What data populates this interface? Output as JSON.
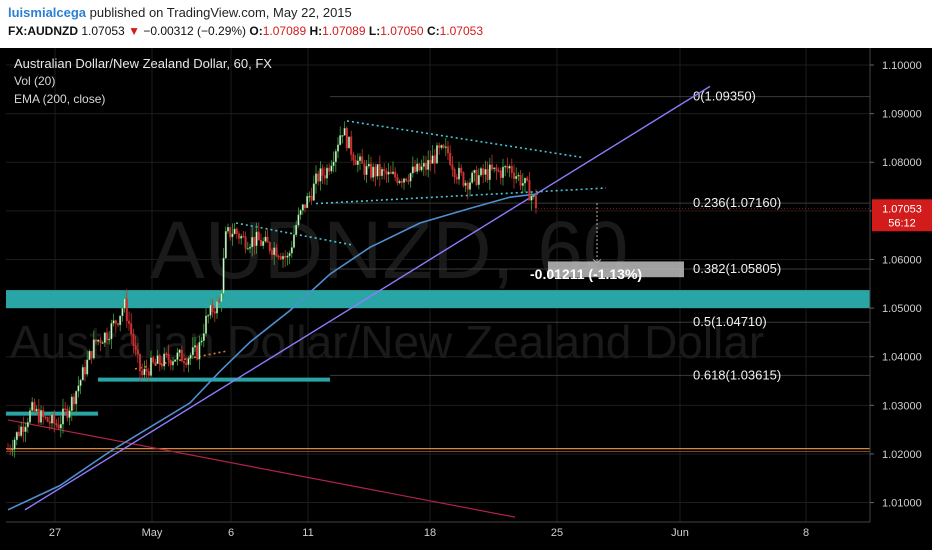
{
  "header": {
    "user": "luismialcega",
    "published": "published on TradingView.com, May 22, 2015",
    "symbol": "FX:AUDNZD",
    "last": "1.07053",
    "change": "−0.00312 (−0.29%)",
    "o_label": "O:",
    "o": "1.07089",
    "h_label": "H:",
    "h": "1.07089",
    "l_label": "L:",
    "l": "1.07050",
    "c_label": "C:",
    "c": "1.07053"
  },
  "legend": {
    "title": "Australian Dollar/New Zealand Dollar, 60, FX",
    "vol": "Vol (20)",
    "ema": "EMA (200, close)"
  },
  "watermark": {
    "symbol": "AUDNZD, 60",
    "name": "Australian Dollar/New Zealand Dollar"
  },
  "chart_data": {
    "type": "candlestick",
    "y_range": [
      1.006,
      1.1035
    ],
    "y_ticks": [
      "1.10000",
      "1.09000",
      "1.08000",
      "1.07000",
      "1.06000",
      "1.05000",
      "1.04000",
      "1.03000",
      "1.02000",
      "1.01000"
    ],
    "x_ticks": [
      "27",
      "May",
      "6",
      "11",
      "18",
      "25",
      "Jun",
      "8"
    ],
    "last_price": "1.07053",
    "countdown": "56:12",
    "fib_levels": [
      {
        "label": "0(1.09350)",
        "value": 1.0935
      },
      {
        "label": "0.236(1.07160)",
        "value": 1.0716
      },
      {
        "label": "0.382(1.05805)",
        "value": 1.05805
      },
      {
        "label": "0.5(1.04710)",
        "value": 1.0471
      },
      {
        "label": "0.618(1.03615)",
        "value": 1.03615
      }
    ],
    "measure_label": "-0.01211 (-1.13%)",
    "price_path": [
      [
        8,
        1.021
      ],
      [
        20,
        1.025
      ],
      [
        32,
        1.029
      ],
      [
        45,
        1.027
      ],
      [
        58,
        1.026
      ],
      [
        70,
        1.03
      ],
      [
        82,
        1.036
      ],
      [
        95,
        1.043
      ],
      [
        108,
        1.045
      ],
      [
        118,
        1.048
      ],
      [
        124,
        1.051
      ],
      [
        130,
        1.046
      ],
      [
        136,
        1.04
      ],
      [
        142,
        1.036
      ],
      [
        150,
        1.038
      ],
      [
        162,
        1.039
      ],
      [
        174,
        1.04
      ],
      [
        186,
        1.04
      ],
      [
        198,
        1.041
      ],
      [
        205,
        1.047
      ],
      [
        213,
        1.05
      ],
      [
        220,
        1.051
      ],
      [
        226,
        1.065
      ],
      [
        234,
        1.066
      ],
      [
        244,
        1.064
      ],
      [
        256,
        1.064
      ],
      [
        266,
        1.063
      ],
      [
        278,
        1.062
      ],
      [
        288,
        1.06
      ],
      [
        296,
        1.067
      ],
      [
        304,
        1.071
      ],
      [
        312,
        1.074
      ],
      [
        318,
        1.077
      ],
      [
        326,
        1.078
      ],
      [
        334,
        1.082
      ],
      [
        342,
        1.087
      ],
      [
        350,
        1.083
      ],
      [
        358,
        1.08
      ],
      [
        368,
        1.078
      ],
      [
        378,
        1.078
      ],
      [
        390,
        1.077
      ],
      [
        402,
        1.077
      ],
      [
        414,
        1.078
      ],
      [
        426,
        1.079
      ],
      [
        438,
        1.082
      ],
      [
        448,
        1.082
      ],
      [
        456,
        1.078
      ],
      [
        466,
        1.076
      ],
      [
        478,
        1.077
      ],
      [
        490,
        1.078
      ],
      [
        500,
        1.078
      ],
      [
        510,
        1.079
      ],
      [
        518,
        1.077
      ],
      [
        526,
        1.075
      ],
      [
        532,
        1.073
      ],
      [
        538,
        1.0705
      ]
    ],
    "ema_path": [
      [
        8,
        1.0085
      ],
      [
        60,
        1.0135
      ],
      [
        110,
        1.0205
      ],
      [
        150,
        1.0255
      ],
      [
        190,
        1.0305
      ],
      [
        220,
        1.037
      ],
      [
        250,
        1.043
      ],
      [
        290,
        1.0495
      ],
      [
        330,
        1.057
      ],
      [
        370,
        1.0625
      ],
      [
        420,
        1.0675
      ],
      [
        470,
        1.0705
      ],
      [
        510,
        1.0728
      ],
      [
        538,
        1.0735
      ]
    ],
    "colors": {
      "background": "#000000",
      "teal_zone": "#2aa5a5",
      "trendline": "#8e7cff",
      "ema": "#4f8fcf",
      "dotted": "#44c6d4",
      "fib": "#d0d0d0",
      "orange": "#d6873a",
      "dark_red": "#b0234a",
      "up_candle": "#3ca63c",
      "down_candle": "#d03030",
      "price_tag": "#d21b1b"
    }
  }
}
